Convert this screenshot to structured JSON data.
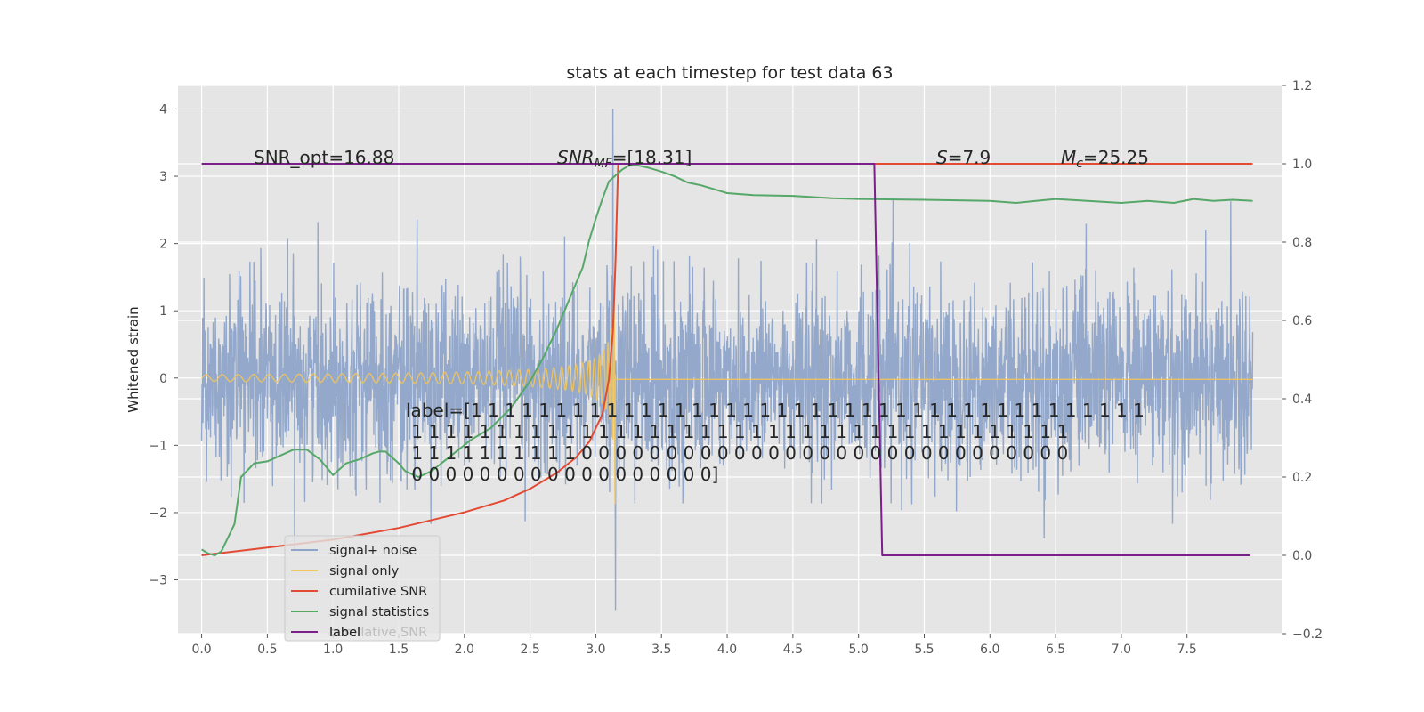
{
  "chart_data": {
    "type": "line",
    "title": "stats at each timestep for test data 63",
    "ylabel": "Whitened strain",
    "xlim": [
      -0.18,
      8.22
    ],
    "ylim": [
      -3.8,
      4.35
    ],
    "y2lim": [
      -0.2,
      1.2
    ],
    "x_ticks": [
      "0.0",
      "0.5",
      "1.0",
      "1.5",
      "2.0",
      "2.5",
      "3.0",
      "3.5",
      "4.0",
      "4.5",
      "5.0",
      "5.5",
      "6.0",
      "6.5",
      "7.0",
      "7.5"
    ],
    "y_ticks": [
      "−3",
      "−2",
      "−1",
      "0",
      "1",
      "2",
      "3",
      "4"
    ],
    "y2_ticks": [
      "−0.2",
      "0.0",
      "0.2",
      "0.4",
      "0.6",
      "0.8",
      "1.0",
      "1.2"
    ],
    "grid": true,
    "legend_location": "lower-left",
    "series": [
      {
        "name": "signal+ noise",
        "color": "#8ea4c8",
        "axis": "left",
        "noise_sigma": 0.75,
        "x_start": 0.0,
        "x_end": 8.0,
        "peak_x": 3.13,
        "peak_value": 4.0,
        "min_value": -3.45
      },
      {
        "name": "signal only",
        "color": "#f2c45a",
        "axis": "left",
        "chirp_start_x": 0.0,
        "merger_x": 3.15,
        "start_amplitude": 0.05,
        "peak_amplitude": 2.0,
        "post_merger_value": -0.02
      },
      {
        "name": "cumilative SNR",
        "color": "#e24a33",
        "axis": "right",
        "x": [
          0,
          0.5,
          1.0,
          1.5,
          2.0,
          2.3,
          2.5,
          2.7,
          2.85,
          2.95,
          3.05,
          3.1,
          3.13,
          3.15,
          3.17,
          8.0
        ],
        "values": [
          0.0,
          0.02,
          0.04,
          0.07,
          0.11,
          0.14,
          0.17,
          0.21,
          0.25,
          0.29,
          0.36,
          0.45,
          0.57,
          0.75,
          1.0,
          1.0
        ]
      },
      {
        "name": "signal statistics",
        "color": "#55a868",
        "axis": "right",
        "x": [
          0,
          0.05,
          0.1,
          0.15,
          0.25,
          0.3,
          0.4,
          0.5,
          0.6,
          0.7,
          0.8,
          0.9,
          0.95,
          1.0,
          1.1,
          1.2,
          1.3,
          1.35,
          1.4,
          1.45,
          1.5,
          1.55,
          1.65,
          1.75,
          1.9,
          2.05,
          2.2,
          2.35,
          2.5,
          2.6,
          2.7,
          2.8,
          2.9,
          2.95,
          3.0,
          3.05,
          3.1,
          3.15,
          3.2,
          3.25,
          3.3,
          3.4,
          3.5,
          3.6,
          3.7,
          3.8,
          3.9,
          4.0,
          4.2,
          4.5,
          4.8,
          5.0,
          5.5,
          6.0,
          6.2,
          6.35,
          6.5,
          7.0,
          7.2,
          7.4,
          7.55,
          7.7,
          7.85,
          8.0
        ],
        "values": [
          0.015,
          0.005,
          0.0,
          0.01,
          0.08,
          0.2,
          0.235,
          0.24,
          0.255,
          0.27,
          0.27,
          0.245,
          0.225,
          0.205,
          0.235,
          0.245,
          0.26,
          0.265,
          0.265,
          0.25,
          0.235,
          0.215,
          0.2,
          0.215,
          0.255,
          0.295,
          0.325,
          0.375,
          0.445,
          0.505,
          0.575,
          0.655,
          0.735,
          0.805,
          0.86,
          0.91,
          0.955,
          0.97,
          0.985,
          0.995,
          0.997,
          0.99,
          0.98,
          0.968,
          0.952,
          0.945,
          0.935,
          0.925,
          0.92,
          0.918,
          0.912,
          0.91,
          0.908,
          0.905,
          0.9,
          0.905,
          0.91,
          0.9,
          0.905,
          0.9,
          0.91,
          0.905,
          0.908,
          0.905
        ]
      },
      {
        "name": "label",
        "color": "#7b1f8a",
        "axis": "right",
        "x": [
          0,
          5.12,
          5.18,
          7.98
        ],
        "values": [
          1.0,
          1.0,
          0.0,
          0.0
        ]
      }
    ],
    "annotations": [
      {
        "text": "SNR_opt=16.88"
      },
      {
        "text": "SNR_MF=[18.31]",
        "display_main": "SNR",
        "display_sub": "MF",
        "display_rest": "=[18.31]"
      },
      {
        "text": "S=7.9",
        "display_main": "S",
        "display_rest": "=7.9"
      },
      {
        "text": "M_c=25.25",
        "display_main": "M",
        "display_sub": "c",
        "display_rest": "=25.25"
      }
    ],
    "label_text": [
      "label=[1 1 1 1 1 1 1 1 1 1 1 1 1 1 1 1 1 1 1 1 1 1 1 1 1 1 1 1 1 1 1 1 1 1 1 1 1 1 1 1",
      " 1 1 1 1 1 1 1 1 1 1 1 1 1 1 1 1 1 1 1 1 1 1 1 1 1 1 1 1 1 1 1 1 1 1 1 1 1 1 1",
      " 1 1 1 1 1 1 1 1 1 1 0 0 0 0 0 0 0 0 0 0 0 0 0 0 0 0 0 0 0 0 0 0 0 0 0 0 0 0 0",
      " 0 0 0 0 0 0 0 0 0 0 0 0 0 0 0 0 0 0]"
    ],
    "legend_ghost_text": "cumilative SNR"
  }
}
